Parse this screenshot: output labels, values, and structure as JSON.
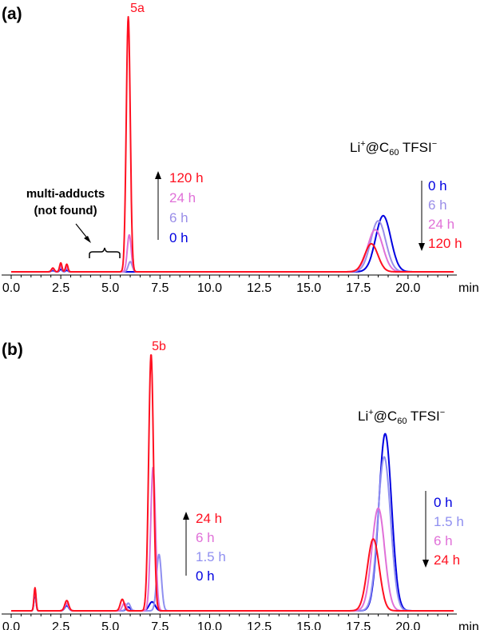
{
  "colors": {
    "0h": "#0000e0",
    "1.5h": "#8f8ff0",
    "6h": "#9a8ee8",
    "24h": "#e070d8",
    "120h": "#ff1020",
    "red": "#ff1020",
    "pink": "#e070d8",
    "lightblue": "#8f8ff0"
  },
  "chart_data": [
    {
      "panel": "(a)",
      "type": "line",
      "xlabel": "min",
      "xlim": [
        0,
        22.3
      ],
      "xticks": [
        "0.0",
        "2.5",
        "5.0",
        "7.5",
        "10.0",
        "12.5",
        "15.0",
        "17.5",
        "20.0"
      ],
      "peak_label": "5a",
      "compound_label": {
        "pre": "Li",
        "sup": "+",
        "mid": "@C",
        "sub": "60",
        "post": " TFSI",
        "sup2": "−"
      },
      "annotation": {
        "line1": "multi-adducts",
        "line2": "(not found)"
      },
      "increase_legend": [
        "120 h",
        "24 h",
        "6 h",
        "0 h"
      ],
      "decrease_legend": [
        "0 h",
        "6 h",
        "24 h",
        "120 h"
      ],
      "series": [
        {
          "name": "0 h",
          "color_key": "0h",
          "peaks": [
            [
              2.1,
              0.005,
              0.08
            ],
            [
              2.5,
              0.01,
              0.06
            ],
            [
              2.8,
              0.006,
              0.06
            ],
            [
              18.75,
              0.22,
              0.38
            ]
          ]
        },
        {
          "name": "6 h",
          "color_key": "6h",
          "peaks": [
            [
              2.1,
              0.01,
              0.07
            ],
            [
              2.5,
              0.02,
              0.06
            ],
            [
              2.8,
              0.015,
              0.06
            ],
            [
              6.0,
              0.04,
              0.1
            ],
            [
              18.5,
              0.2,
              0.38
            ]
          ]
        },
        {
          "name": "24 h",
          "color_key": "24h",
          "peaks": [
            [
              2.1,
              0.012,
              0.07
            ],
            [
              2.5,
              0.025,
              0.06
            ],
            [
              2.8,
              0.02,
              0.06
            ],
            [
              5.95,
              0.145,
              0.1
            ],
            [
              18.35,
              0.165,
              0.38
            ]
          ]
        },
        {
          "name": "120 h",
          "color_key": "120h",
          "peaks": [
            [
              2.1,
              0.015,
              0.07
            ],
            [
              2.5,
              0.035,
              0.06
            ],
            [
              2.8,
              0.03,
              0.06
            ],
            [
              5.9,
              1.0,
              0.1
            ],
            [
              18.15,
              0.11,
              0.33
            ]
          ]
        }
      ]
    },
    {
      "panel": "(b)",
      "type": "line",
      "xlabel": "min",
      "xlim": [
        0,
        22.3
      ],
      "xticks": [
        "0.0",
        "2.5",
        "5.0",
        "7.5",
        "10.0",
        "12.5",
        "15.0",
        "17.5",
        "20.0"
      ],
      "peak_label": "5b",
      "compound_label": {
        "pre": "Li",
        "sup": "+",
        "mid": "@C",
        "sub": "60",
        "post": " TFSI",
        "sup2": "−"
      },
      "increase_legend": [
        "24 h",
        "6 h",
        "1.5 h",
        "0 h"
      ],
      "decrease_legend": [
        "0 h",
        "1.5 h",
        "6 h",
        "24 h"
      ],
      "series": [
        {
          "name": "0 h",
          "color_key": "0h",
          "peaks": [
            [
              1.2,
              0.07,
              0.05
            ],
            [
              2.8,
              0.02,
              0.1
            ],
            [
              5.9,
              0.015,
              0.1
            ],
            [
              7.1,
              0.035,
              0.15
            ],
            [
              18.85,
              0.69,
              0.32
            ]
          ]
        },
        {
          "name": "1.5 h",
          "color_key": "1.5h",
          "peaks": [
            [
              1.2,
              0.08,
              0.05
            ],
            [
              2.8,
              0.025,
              0.1
            ],
            [
              5.9,
              0.03,
              0.1
            ],
            [
              7.45,
              0.22,
              0.12
            ],
            [
              18.8,
              0.6,
              0.32
            ]
          ]
        },
        {
          "name": "6 h",
          "color_key": "24h",
          "peaks": [
            [
              1.2,
              0.085,
              0.05
            ],
            [
              2.8,
              0.03,
              0.1
            ],
            [
              5.7,
              0.03,
              0.1
            ],
            [
              7.15,
              0.56,
              0.12
            ],
            [
              18.5,
              0.4,
              0.32
            ]
          ]
        },
        {
          "name": "24 h",
          "color_key": "120h",
          "peaks": [
            [
              1.2,
              0.09,
              0.05
            ],
            [
              2.8,
              0.04,
              0.1
            ],
            [
              5.6,
              0.045,
              0.1
            ],
            [
              7.05,
              1.0,
              0.12
            ],
            [
              18.25,
              0.28,
              0.3
            ]
          ]
        }
      ]
    }
  ]
}
